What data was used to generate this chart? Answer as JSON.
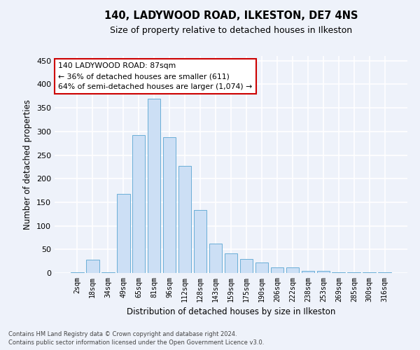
{
  "title": "140, LADYWOOD ROAD, ILKESTON, DE7 4NS",
  "subtitle": "Size of property relative to detached houses in Ilkeston",
  "xlabel": "Distribution of detached houses by size in Ilkeston",
  "ylabel": "Number of detached properties",
  "categories": [
    "2sqm",
    "18sqm",
    "34sqm",
    "49sqm",
    "65sqm",
    "81sqm",
    "96sqm",
    "112sqm",
    "128sqm",
    "143sqm",
    "159sqm",
    "175sqm",
    "190sqm",
    "206sqm",
    "222sqm",
    "238sqm",
    "253sqm",
    "269sqm",
    "285sqm",
    "300sqm",
    "316sqm"
  ],
  "values": [
    2,
    28,
    2,
    168,
    293,
    370,
    288,
    227,
    134,
    62,
    42,
    30,
    23,
    12,
    12,
    5,
    4,
    2,
    1,
    1,
    1
  ],
  "bar_color": "#ccdff5",
  "bar_edge_color": "#6aaed6",
  "background_color": "#eef2fa",
  "grid_color": "#ffffff",
  "ylim": [
    0,
    460
  ],
  "yticks": [
    0,
    50,
    100,
    150,
    200,
    250,
    300,
    350,
    400,
    450
  ],
  "annotation_text_line1": "140 LADYWOOD ROAD: 87sqm",
  "annotation_text_line2": "← 36% of detached houses are smaller (611)",
  "annotation_text_line3": "64% of semi-detached houses are larger (1,074) →",
  "annotation_box_color": "#ffffff",
  "annotation_border_color": "#cc0000",
  "footer_line1": "Contains HM Land Registry data © Crown copyright and database right 2024.",
  "footer_line2": "Contains public sector information licensed under the Open Government Licence v3.0."
}
